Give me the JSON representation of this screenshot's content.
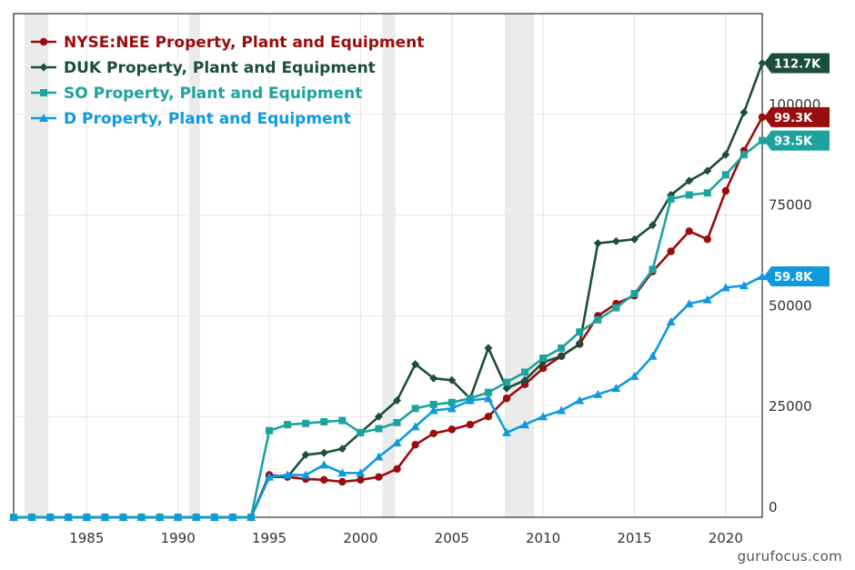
{
  "chart_data": {
    "type": "line",
    "x": [
      1981,
      1982,
      1983,
      1984,
      1985,
      1986,
      1987,
      1988,
      1989,
      1990,
      1991,
      1992,
      1993,
      1994,
      1995,
      1996,
      1997,
      1998,
      1999,
      2000,
      2001,
      2002,
      2003,
      2004,
      2005,
      2006,
      2007,
      2008,
      2009,
      2010,
      2011,
      2012,
      2013,
      2014,
      2015,
      2016,
      2017,
      2018,
      2019,
      2020,
      2021,
      2022
    ],
    "xlim": [
      1981,
      2022
    ],
    "x_ticks": [
      "1985",
      "1990",
      "1995",
      "2000",
      "2005",
      "2010",
      "2015",
      "2020"
    ],
    "x_tick_values": [
      1985,
      1990,
      1995,
      2000,
      2005,
      2010,
      2015,
      2020
    ],
    "ylim": [
      0,
      125000
    ],
    "y_ticks": [
      "0",
      "25000",
      "50000",
      "75000",
      "100000"
    ],
    "y_tick_values": [
      0,
      25000,
      50000,
      75000,
      100000
    ],
    "grid": true,
    "legend_position": "top-left",
    "recessions": [
      [
        1981.6,
        1982.9
      ],
      [
        1990.6,
        1991.2
      ],
      [
        2001.2,
        2001.9
      ],
      [
        2007.9,
        2009.5
      ]
    ],
    "series": [
      {
        "name": "NYSE:NEE Property, Plant and Equipment",
        "color": "#9b0c0c",
        "marker": "circle",
        "tag": "99.3K",
        "values": [
          0,
          0,
          0,
          0,
          0,
          0,
          0,
          0,
          0,
          0,
          0,
          0,
          0,
          0,
          10500,
          10000,
          9500,
          9300,
          8800,
          9300,
          10000,
          12000,
          18000,
          20800,
          21800,
          23000,
          25000,
          29500,
          33000,
          37000,
          40000,
          43000,
          50000,
          53000,
          55000,
          61000,
          66000,
          71000,
          69000,
          81000,
          91000,
          99300
        ]
      },
      {
        "name": "DUK Property, Plant and Equipment",
        "color": "#1c4e3a",
        "marker": "diamond",
        "tag": "112.7K",
        "values": [
          0,
          0,
          0,
          0,
          0,
          0,
          0,
          0,
          0,
          0,
          0,
          0,
          0,
          0,
          10000,
          10000,
          15500,
          16000,
          17000,
          21000,
          25000,
          29000,
          38000,
          34500,
          34000,
          29500,
          42000,
          32000,
          34000,
          38500,
          40000,
          43000,
          68000,
          68500,
          69000,
          72500,
          80000,
          83500,
          86000,
          90000,
          100500,
          112700
        ]
      },
      {
        "name": "SO Property, Plant and Equipment",
        "color": "#1ba39c",
        "marker": "square",
        "tag": "93.5K",
        "values": [
          0,
          0,
          0,
          0,
          0,
          0,
          0,
          0,
          0,
          0,
          0,
          0,
          0,
          0,
          21500,
          23000,
          23300,
          23700,
          24000,
          21000,
          22000,
          23500,
          27000,
          28000,
          28500,
          29500,
          31000,
          33500,
          36000,
          39500,
          42000,
          46000,
          49000,
          52000,
          55500,
          61500,
          79000,
          80000,
          80500,
          85000,
          90000,
          93500
        ]
      },
      {
        "name": "D Property, Plant and Equipment",
        "color": "#0f9ae0",
        "marker": "triangle",
        "tag": "59.8K",
        "values": [
          0,
          0,
          0,
          0,
          0,
          0,
          0,
          0,
          0,
          0,
          0,
          0,
          0,
          0,
          10000,
          10500,
          10500,
          13000,
          11000,
          11000,
          15000,
          18500,
          22500,
          26500,
          27000,
          29000,
          29500,
          21000,
          23000,
          25000,
          26500,
          29000,
          30500,
          32000,
          35000,
          40000,
          48500,
          53000,
          54000,
          57000,
          57500,
          59800
        ]
      }
    ]
  },
  "watermark": "gurufocus.com"
}
